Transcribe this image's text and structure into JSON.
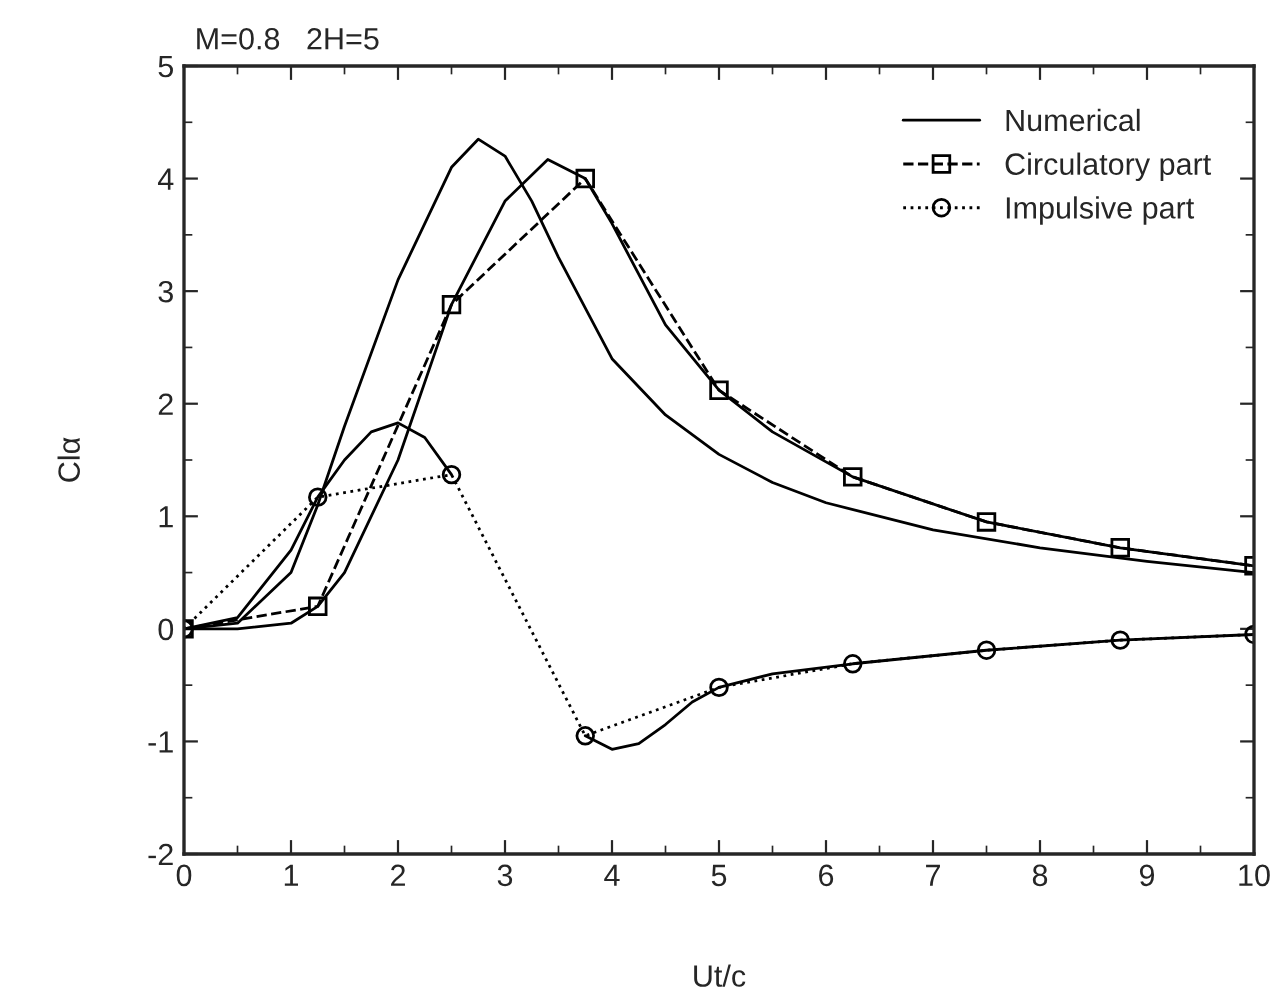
{
  "chart_data": {
    "type": "line",
    "title": "M=0.8   2H=5",
    "xlabel": "Ut/c",
    "ylabel": "Clα",
    "xlim": [
      0,
      10
    ],
    "xticks": [
      0,
      1,
      2,
      3,
      4,
      5,
      6,
      7,
      8,
      9,
      10
    ],
    "ylim": [
      -2,
      5
    ],
    "yticks": [
      -2,
      -1,
      0,
      1,
      2,
      3,
      4,
      5
    ],
    "grid": false,
    "legend": "top right",
    "series": [
      {
        "name": "Numerical",
        "color": "#000000",
        "line_style": "solid",
        "marker": "none",
        "x": [
          0,
          0.5,
          1,
          1.25,
          1.5,
          2,
          2.5,
          2.75,
          3,
          3.25,
          3.5,
          4,
          4.5,
          5,
          5.5,
          6,
          7,
          8,
          9,
          10
        ],
        "values": [
          0,
          0.05,
          0.5,
          1.1,
          1.8,
          3.1,
          4.1,
          4.35,
          4.2,
          3.8,
          3.3,
          2.4,
          1.9,
          1.55,
          1.3,
          1.12,
          0.88,
          0.72,
          0.6,
          0.5
        ]
      },
      {
        "name": "Circulatory part",
        "color": "#000000",
        "line_style": "dashed",
        "marker": "square",
        "x": [
          0,
          1.25,
          2.5,
          3.75,
          5,
          6.25,
          7.5,
          8.75,
          10
        ],
        "values": [
          0,
          0.2,
          2.88,
          4.0,
          2.12,
          1.35,
          0.95,
          0.72,
          0.56
        ]
      },
      {
        "name": "Impulsive part",
        "color": "#000000",
        "line_style": "dotted",
        "marker": "circle",
        "x": [
          0,
          1.25,
          2.5,
          3.75,
          5,
          6.25,
          7.5,
          8.75,
          10
        ],
        "values": [
          0,
          1.17,
          1.37,
          -0.95,
          -0.52,
          -0.31,
          -0.19,
          -0.1,
          -0.05
        ]
      },
      {
        "color": "#000000",
        "line_style": "solid",
        "marker": "none",
        "x": [
          0,
          0.5,
          1,
          1.25,
          1.5,
          2,
          2.5,
          3,
          3.4,
          3.75,
          4,
          4.5,
          5,
          5.5,
          6.25,
          7.5,
          8.75,
          10
        ],
        "values": [
          0,
          0,
          0.05,
          0.2,
          0.5,
          1.5,
          2.88,
          3.8,
          4.17,
          4.0,
          3.6,
          2.7,
          2.12,
          1.75,
          1.35,
          0.95,
          0.72,
          0.56
        ]
      },
      {
        "color": "#000000",
        "line_style": "solid",
        "marker": "none",
        "x": [
          0,
          0.5,
          1,
          1.25,
          1.5,
          1.75,
          2,
          2.25,
          2.5
        ],
        "values": [
          0,
          0.1,
          0.7,
          1.17,
          1.5,
          1.75,
          1.83,
          1.7,
          1.37
        ]
      },
      {
        "color": "#000000",
        "line_style": "solid",
        "marker": "none",
        "x": [
          3.75,
          4,
          4.25,
          4.5,
          4.75,
          5,
          5.5,
          6.25,
          7.5,
          8.75,
          10
        ],
        "values": [
          -0.95,
          -1.07,
          -1.02,
          -0.85,
          -0.65,
          -0.52,
          -0.4,
          -0.31,
          -0.19,
          -0.1,
          -0.05
        ]
      }
    ]
  }
}
